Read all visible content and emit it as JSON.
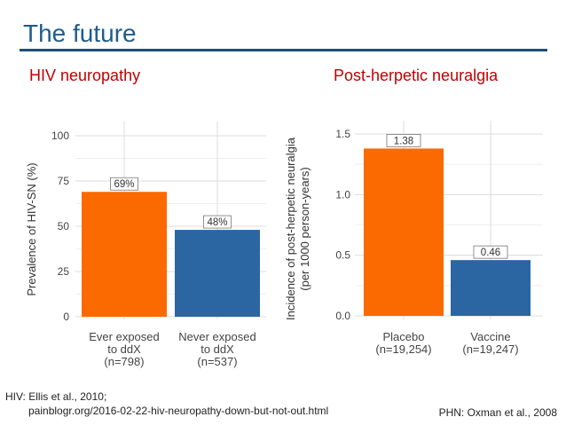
{
  "slide": {
    "title": "The future",
    "left_heading": "HIV neuropathy",
    "right_heading": "Post-herpetic neuralgia",
    "citation_hiv_line1": "HIV: Ellis et al., 2010;",
    "citation_hiv_line2": "painblogr.org/2016-02-22-hiv-neuropathy-down-but-not-out.html",
    "citation_phn": "PHN: Oxman et al., 2008"
  },
  "colors": {
    "orange": "#fa6a00",
    "blue": "#2b66a3",
    "title": "#1f5c8c",
    "heading": "#c00000"
  },
  "chart_data": [
    {
      "type": "bar",
      "title": "HIV neuropathy",
      "ylabel": "Prevalence of HIV-SN (%)",
      "ylim": [
        0,
        100
      ],
      "yticks": [
        0,
        25,
        50,
        75,
        100
      ],
      "ytick_labels": [
        "0",
        "25",
        "50",
        "75",
        "100"
      ],
      "categories": [
        [
          "Ever exposed",
          "to ddX",
          "(n=798)"
        ],
        [
          "Never exposed",
          "to ddX",
          "(n=537)"
        ]
      ],
      "values": [
        69,
        48
      ],
      "value_labels": [
        "69%",
        "48%"
      ],
      "bar_colors": [
        "#fa6a00",
        "#2b66a3"
      ]
    },
    {
      "type": "bar",
      "title": "Post-herpetic neuralgia",
      "ylabel": [
        "Incidence of post-herpetic neuralgia",
        "(per 1000 person-years)"
      ],
      "ylim": [
        0,
        1.5
      ],
      "yticks": [
        0,
        0.5,
        1.0,
        1.5
      ],
      "ytick_labels": [
        "0.0",
        "0.5",
        "1.0",
        "1.5"
      ],
      "categories": [
        [
          "Placebo",
          "(n=19,254)"
        ],
        [
          "Vaccine",
          "(n=19,247)"
        ]
      ],
      "values": [
        1.38,
        0.46
      ],
      "value_labels": [
        "1.38",
        "0.46"
      ],
      "bar_colors": [
        "#fa6a00",
        "#2b66a3"
      ]
    }
  ]
}
